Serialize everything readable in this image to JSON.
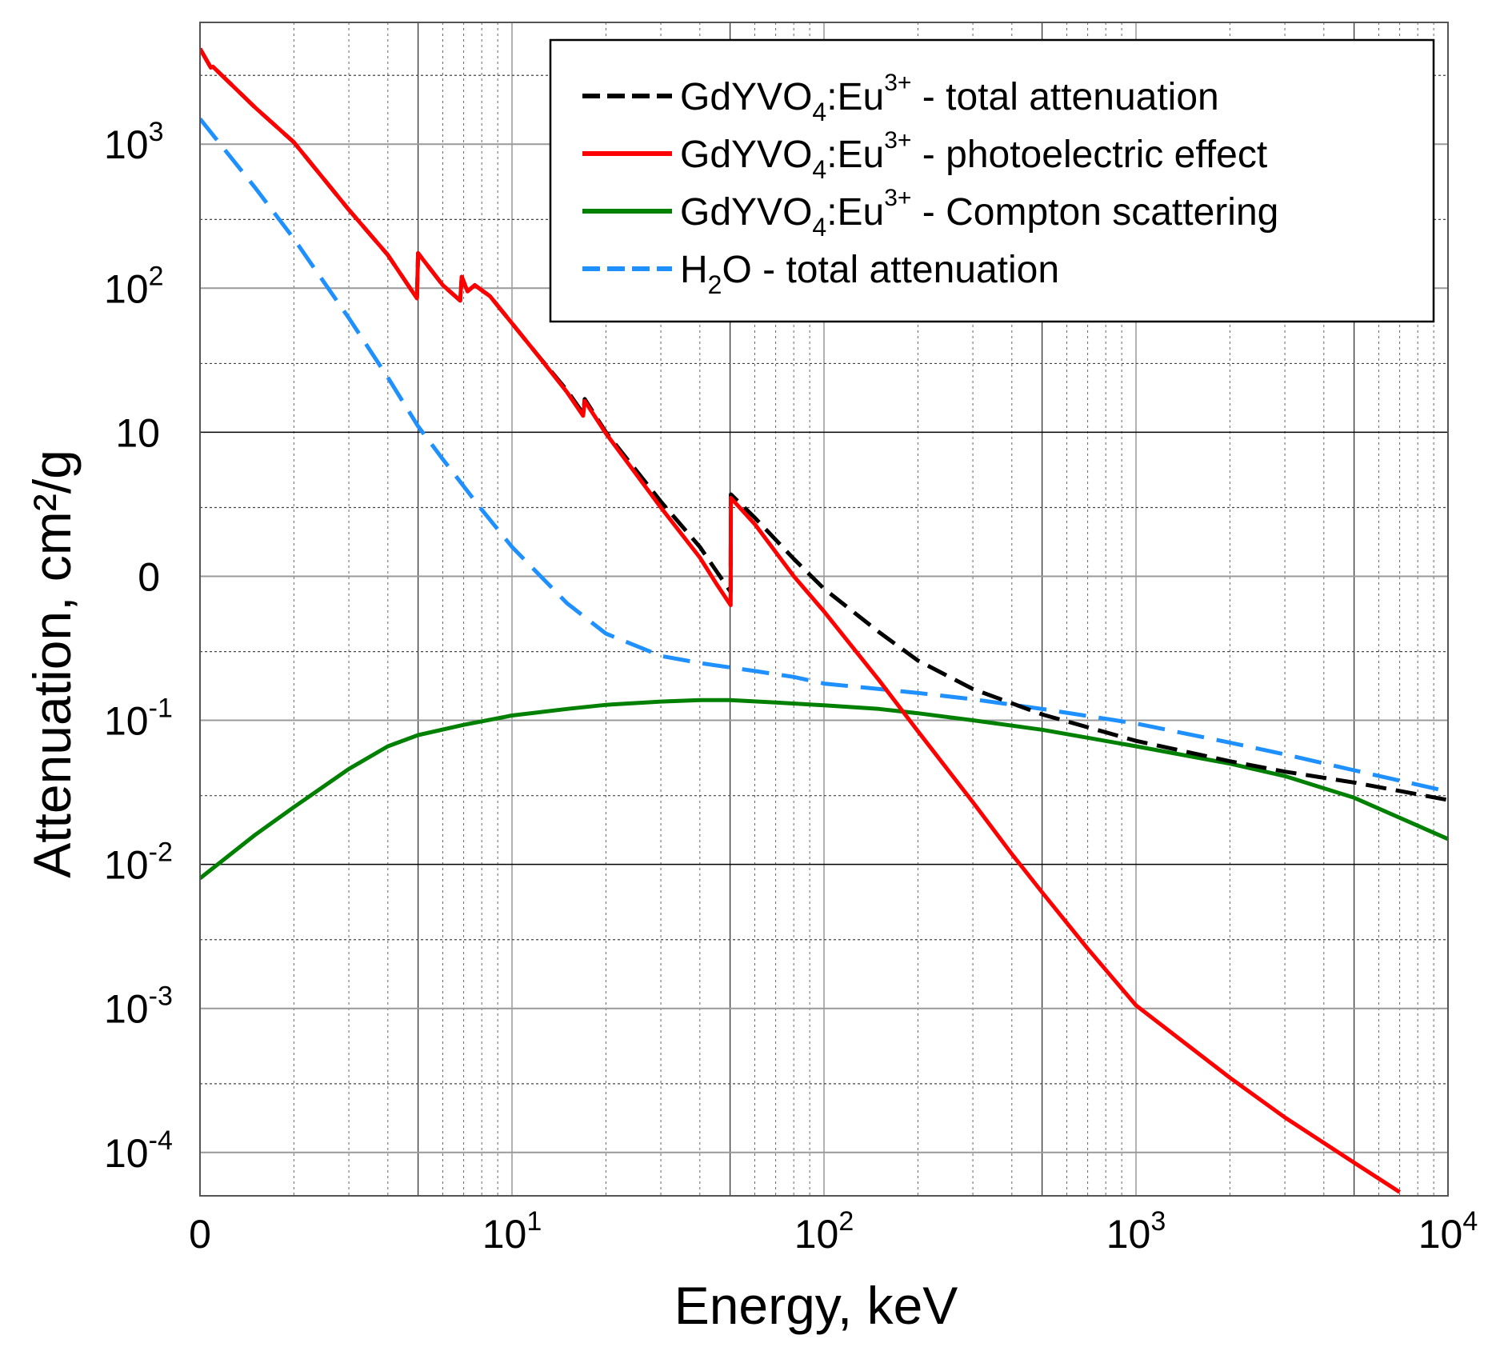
{
  "chart_data": {
    "type": "line",
    "x_scale": "log",
    "y_scale": "log",
    "xlabel": "Energy, keV",
    "ylabel": "Attenuation, cm²/g",
    "xlim": [
      1,
      10000
    ],
    "ylim": [
      5e-05,
      7000
    ],
    "grid": true,
    "legend_position": "top-right",
    "x_ticks": [
      {
        "value": 1,
        "base": "0",
        "exp": ""
      },
      {
        "value": 10,
        "base": "10",
        "exp": "1"
      },
      {
        "value": 100,
        "base": "10",
        "exp": "2"
      },
      {
        "value": 1000,
        "base": "10",
        "exp": "3"
      },
      {
        "value": 10000,
        "base": "10",
        "exp": "4"
      }
    ],
    "y_ticks": [
      {
        "value": 0.0001,
        "base": "10",
        "exp": "-4"
      },
      {
        "value": 0.001,
        "base": "10",
        "exp": "-3"
      },
      {
        "value": 0.01,
        "base": "10",
        "exp": "-2"
      },
      {
        "value": 0.1,
        "base": "10",
        "exp": "-1"
      },
      {
        "value": 1,
        "base": "0",
        "exp": ""
      },
      {
        "value": 10,
        "base": "10",
        "exp": ""
      },
      {
        "value": 100,
        "base": "10",
        "exp": "2"
      },
      {
        "value": 1000,
        "base": "10",
        "exp": "3"
      }
    ],
    "series": [
      {
        "name": "GdYVO₄:Eu³⁺ - total attenuation",
        "legend_parts": [
          "GdYVO",
          "4",
          ":Eu",
          "3+",
          " - total attenuation"
        ],
        "color": "#000000",
        "style": "dashed",
        "points": [
          [
            1,
            4600
          ],
          [
            1.083,
            3400
          ],
          [
            1.1,
            3450
          ],
          [
            1.5,
            1800
          ],
          [
            2,
            1030
          ],
          [
            3,
            350
          ],
          [
            4,
            170
          ],
          [
            4.96,
            85
          ],
          [
            5.0,
            175
          ],
          [
            6.0,
            105
          ],
          [
            6.82,
            82
          ],
          [
            6.9,
            120
          ],
          [
            7.2,
            95
          ],
          [
            7.6,
            105
          ],
          [
            8.5,
            88
          ],
          [
            10,
            57
          ],
          [
            12,
            35
          ],
          [
            15,
            19.5
          ],
          [
            16.9,
            13.5
          ],
          [
            17.1,
            17
          ],
          [
            20,
            10
          ],
          [
            30,
            3.3
          ],
          [
            40,
            1.6
          ],
          [
            45,
            1.1
          ],
          [
            50.2,
            0.78
          ],
          [
            50.3,
            3.7
          ],
          [
            60,
            2.55
          ],
          [
            80,
            1.32
          ],
          [
            100,
            0.82
          ],
          [
            150,
            0.41
          ],
          [
            200,
            0.26
          ],
          [
            300,
            0.165
          ],
          [
            500,
            0.11
          ],
          [
            1000,
            0.072
          ],
          [
            2000,
            0.052
          ],
          [
            3000,
            0.044
          ],
          [
            5000,
            0.037
          ],
          [
            10000,
            0.028
          ]
        ]
      },
      {
        "name": "GdYVO₄:Eu³⁺ - photoelectric effect",
        "legend_parts": [
          "GdYVO",
          "4",
          ":Eu",
          "3+",
          " - photoelectric effect"
        ],
        "color": "#ff0000",
        "style": "solid",
        "points": [
          [
            1,
            4600
          ],
          [
            1.083,
            3400
          ],
          [
            1.1,
            3450
          ],
          [
            1.5,
            1800
          ],
          [
            2,
            1030
          ],
          [
            3,
            350
          ],
          [
            4,
            170
          ],
          [
            4.96,
            85
          ],
          [
            5.0,
            175
          ],
          [
            6.0,
            105
          ],
          [
            6.82,
            82
          ],
          [
            6.9,
            120
          ],
          [
            7.2,
            95
          ],
          [
            7.6,
            105
          ],
          [
            8.5,
            88
          ],
          [
            10,
            57
          ],
          [
            12,
            35
          ],
          [
            15,
            19
          ],
          [
            16.9,
            13
          ],
          [
            17.1,
            16.5
          ],
          [
            20,
            9.8
          ],
          [
            30,
            3.0
          ],
          [
            40,
            1.35
          ],
          [
            45,
            0.9
          ],
          [
            50.2,
            0.63
          ],
          [
            50.3,
            3.5
          ],
          [
            60,
            2.3
          ],
          [
            80,
            1.0
          ],
          [
            100,
            0.57
          ],
          [
            150,
            0.19
          ],
          [
            200,
            0.084
          ],
          [
            300,
            0.027
          ],
          [
            400,
            0.0118
          ],
          [
            500,
            0.0064
          ],
          [
            700,
            0.0026
          ],
          [
            1000,
            0.00105
          ],
          [
            2000,
            0.00033
          ],
          [
            3000,
            0.000175
          ],
          [
            5000,
            8.5e-05
          ],
          [
            7000,
            5.3e-05
          ]
        ]
      },
      {
        "name": "GdYVO₄:Eu³⁺ - Compton scattering",
        "legend_parts": [
          "GdYVO",
          "4",
          ":Eu",
          "3+",
          " - Compton scattering"
        ],
        "color": "#008000",
        "style": "solid",
        "points": [
          [
            1,
            0.008
          ],
          [
            1.5,
            0.016
          ],
          [
            2,
            0.025
          ],
          [
            3,
            0.046
          ],
          [
            4,
            0.066
          ],
          [
            5,
            0.079
          ],
          [
            7,
            0.093
          ],
          [
            10,
            0.108
          ],
          [
            15,
            0.12
          ],
          [
            20,
            0.128
          ],
          [
            30,
            0.135
          ],
          [
            40,
            0.138
          ],
          [
            50,
            0.138
          ],
          [
            70,
            0.133
          ],
          [
            100,
            0.127
          ],
          [
            150,
            0.12
          ],
          [
            200,
            0.112
          ],
          [
            300,
            0.1
          ],
          [
            500,
            0.086
          ],
          [
            1000,
            0.066
          ],
          [
            2000,
            0.05
          ],
          [
            3000,
            0.041
          ],
          [
            5000,
            0.029
          ],
          [
            10000,
            0.015
          ]
        ]
      },
      {
        "name": "H₂O - total attenuation",
        "legend_parts": [
          "H",
          "2",
          "O - total attenuation",
          "",
          ""
        ],
        "color": "#1e90ff",
        "style": "dashed",
        "points": [
          [
            1,
            1500
          ],
          [
            1.5,
            500
          ],
          [
            2,
            220
          ],
          [
            3,
            62
          ],
          [
            4,
            24
          ],
          [
            5,
            11
          ],
          [
            6,
            6.5
          ],
          [
            8,
            2.9
          ],
          [
            10,
            1.6
          ],
          [
            15,
            0.65
          ],
          [
            20,
            0.4
          ],
          [
            30,
            0.28
          ],
          [
            40,
            0.25
          ],
          [
            60,
            0.22
          ],
          [
            80,
            0.2
          ],
          [
            100,
            0.18
          ],
          [
            150,
            0.165
          ],
          [
            200,
            0.155
          ],
          [
            300,
            0.14
          ],
          [
            500,
            0.12
          ],
          [
            1000,
            0.095
          ],
          [
            2000,
            0.07
          ],
          [
            3000,
            0.058
          ],
          [
            5000,
            0.045
          ],
          [
            10000,
            0.032
          ]
        ]
      }
    ]
  }
}
